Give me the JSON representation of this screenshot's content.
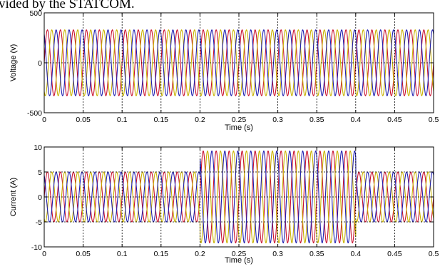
{
  "caption": "vided by the STATCOM.",
  "colors": {
    "phase_a": "#c8102e",
    "phase_b": "#c9b200",
    "phase_c": "#1f1fb0",
    "axes": "#000000",
    "grid": "#000000"
  },
  "chart_data": [
    {
      "type": "line",
      "title": "",
      "xlabel": "Time (s)",
      "ylabel": "Voltage (v)",
      "xlim": [
        0,
        0.5
      ],
      "ylim": [
        -500,
        500
      ],
      "xticks": [
        0,
        0.05,
        0.1,
        0.15,
        0.2,
        0.25,
        0.3,
        0.35,
        0.4,
        0.45,
        0.5
      ],
      "xtick_labels": [
        "0",
        "0.05",
        "0.1",
        "0.15",
        "0.2",
        "0.25",
        "0.3",
        "0.35",
        "0.4",
        "0.45",
        "0.5"
      ],
      "yticks": [
        -500,
        0,
        500
      ],
      "ytick_labels": [
        "-500",
        "0",
        "500"
      ],
      "grid": true,
      "frequency_hz": 60,
      "series": [
        {
          "phase_deg": 0,
          "color": "#c8102e",
          "segments": [
            {
              "t_start": 0,
              "t_end": 0.5,
              "amplitude": 330
            }
          ]
        },
        {
          "phase_deg": -120,
          "color": "#c9b200",
          "segments": [
            {
              "t_start": 0,
              "t_end": 0.5,
              "amplitude": 330
            }
          ]
        },
        {
          "phase_deg": 120,
          "color": "#1f1fb0",
          "segments": [
            {
              "t_start": 0,
              "t_end": 0.5,
              "amplitude": 330
            }
          ]
        }
      ]
    },
    {
      "type": "line",
      "title": "",
      "xlabel": "Time (s)",
      "ylabel": "Current (A)",
      "xlim": [
        0,
        0.5
      ],
      "ylim": [
        -10,
        10
      ],
      "xticks": [
        0,
        0.05,
        0.1,
        0.15,
        0.2,
        0.25,
        0.3,
        0.35,
        0.4,
        0.45,
        0.5
      ],
      "xtick_labels": [
        "0",
        "0.05",
        "0.1",
        "0.15",
        "0.2",
        "0.25",
        "0.3",
        "0.35",
        "0.4",
        "0.45",
        "0.5"
      ],
      "yticks": [
        -10,
        -5,
        0,
        5,
        10
      ],
      "ytick_labels": [
        "-10",
        "-5",
        "0",
        "5",
        "10"
      ],
      "grid": true,
      "frequency_hz": 60,
      "series": [
        {
          "phase_deg": 0,
          "color": "#c8102e",
          "segments": [
            {
              "t_start": 0,
              "t_end": 0.2,
              "amplitude": 5
            },
            {
              "t_start": 0.2,
              "t_end": 0.4,
              "amplitude": 9.2
            },
            {
              "t_start": 0.4,
              "t_end": 0.5,
              "amplitude": 5
            }
          ]
        },
        {
          "phase_deg": -120,
          "color": "#c9b200",
          "segments": [
            {
              "t_start": 0,
              "t_end": 0.2,
              "amplitude": 5
            },
            {
              "t_start": 0.2,
              "t_end": 0.4,
              "amplitude": 9.2
            },
            {
              "t_start": 0.4,
              "t_end": 0.5,
              "amplitude": 5
            }
          ]
        },
        {
          "phase_deg": 120,
          "color": "#1f1fb0",
          "segments": [
            {
              "t_start": 0,
              "t_end": 0.2,
              "amplitude": 5
            },
            {
              "t_start": 0.2,
              "t_end": 0.4,
              "amplitude": 9.2
            },
            {
              "t_start": 0.4,
              "t_end": 0.5,
              "amplitude": 5
            }
          ]
        }
      ]
    }
  ]
}
